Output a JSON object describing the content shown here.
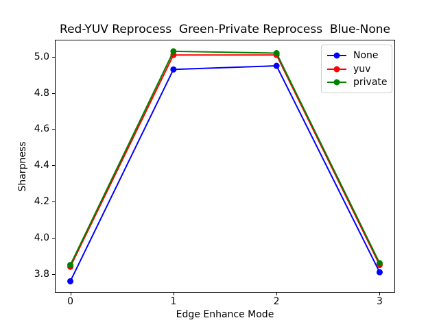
{
  "chart_data": {
    "type": "line",
    "title": "Red-YUV Reprocess  Green-Private Reprocess  Blue-None",
    "xlabel": "Edge Enhance Mode",
    "ylabel": "Sharpness",
    "x": [
      0,
      1,
      2,
      3
    ],
    "series": [
      {
        "name": "None",
        "color": "#0000ff",
        "values": [
          3.76,
          4.93,
          4.95,
          3.81
        ]
      },
      {
        "name": "yuv",
        "color": "#ff0000",
        "values": [
          3.84,
          5.01,
          5.01,
          3.85
        ]
      },
      {
        "name": "private",
        "color": "#008000",
        "values": [
          3.85,
          5.03,
          5.02,
          3.86
        ]
      }
    ],
    "xticks": [
      0,
      1,
      2,
      3
    ],
    "yticks": [
      3.8,
      4.0,
      4.2,
      4.4,
      4.6,
      4.8,
      5.0
    ],
    "xlim": [
      -0.15,
      3.15
    ],
    "ylim": [
      3.697,
      5.094
    ],
    "grid": false,
    "legend": {
      "position": "upper right",
      "entries": [
        "None",
        "yuv",
        "private"
      ]
    }
  }
}
